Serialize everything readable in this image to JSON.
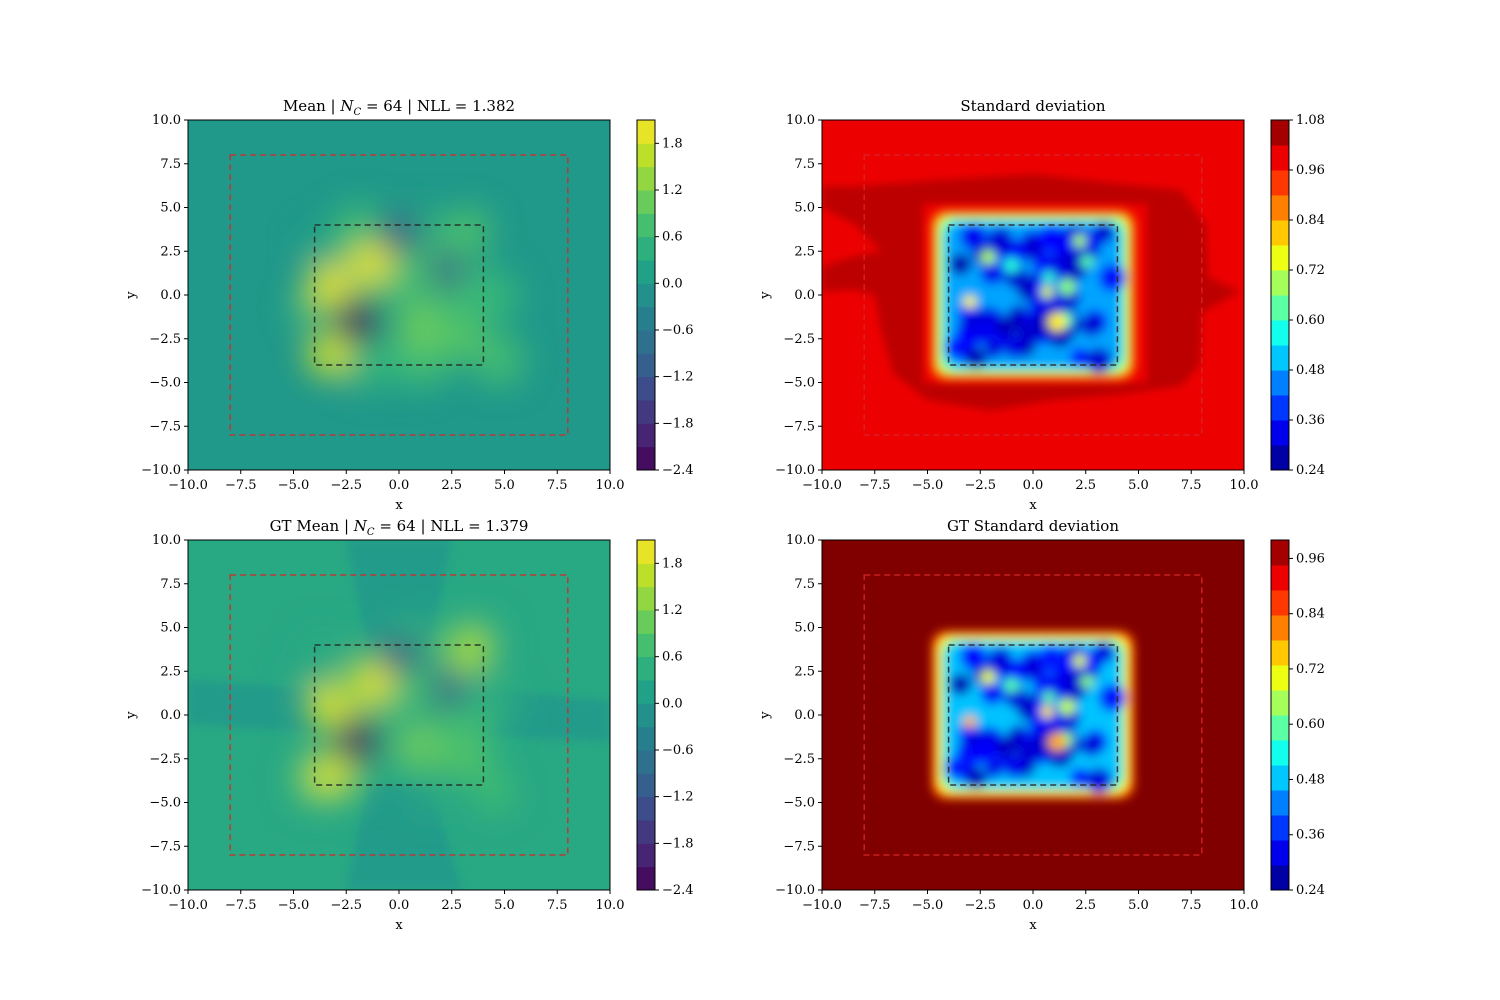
{
  "chart_data": [
    {
      "type": "heatmap",
      "title": "Mean | N_C = 64 | NLL = 1.382",
      "title_parts": {
        "prefix": "Mean | ",
        "symbol": "N",
        "subscript": "C",
        "suffix": " = 64 | NLL = 1.382"
      },
      "xlabel": "x",
      "ylabel": "y",
      "xlim": [
        -10,
        10
      ],
      "ylim": [
        -10,
        10
      ],
      "xticks": [
        "−10.0",
        "−7.5",
        "−5.0",
        "−2.5",
        "0.0",
        "2.5",
        "5.0",
        "7.5",
        "10.0"
      ],
      "yticks": [
        "−10.0",
        "−7.5",
        "−5.0",
        "−2.5",
        "0.0",
        "2.5",
        "5.0",
        "7.5",
        "10.0"
      ],
      "colormap": "viridis",
      "background_value": 0.0,
      "colorbar": {
        "min": -2.4,
        "max": 2.1,
        "ticks": [
          "−2.4",
          "−1.8",
          "−1.2",
          "−0.6",
          "0.0",
          "0.6",
          "1.2",
          "1.8"
        ]
      },
      "features": [
        {
          "x": 0.0,
          "y": 3.3,
          "value": -1.3
        },
        {
          "x": -1.3,
          "y": 1.8,
          "value": 1.9
        },
        {
          "x": -3.3,
          "y": 0.5,
          "value": 1.9
        },
        {
          "x": -2.0,
          "y": -1.5,
          "value": -2.3
        },
        {
          "x": -3.3,
          "y": -3.4,
          "value": 1.8
        },
        {
          "x": 2.0,
          "y": 1.3,
          "value": -1.4
        },
        {
          "x": 3.3,
          "y": 3.7,
          "value": 0.8
        },
        {
          "x": 0.8,
          "y": 1.5,
          "value": 0.7
        },
        {
          "x": 1.0,
          "y": -1.8,
          "value": 1.1
        },
        {
          "x": 3.0,
          "y": -2.3,
          "value": 0.9
        },
        {
          "x": 2.5,
          "y": -0.7,
          "value": 0.7
        }
      ],
      "region_boxes": [
        {
          "x": [
            -8,
            8
          ],
          "y": [
            -8,
            8
          ],
          "color": "#d62728"
        },
        {
          "x": [
            -4,
            4
          ],
          "y": [
            -4,
            4
          ],
          "color": "#222222"
        }
      ]
    },
    {
      "type": "heatmap",
      "title": "Standard deviation",
      "xlabel": "x",
      "ylabel": "y",
      "xlim": [
        -10,
        10
      ],
      "ylim": [
        -10,
        10
      ],
      "xticks": [
        "−10.0",
        "−7.5",
        "−5.0",
        "−2.5",
        "0.0",
        "2.5",
        "5.0",
        "7.5",
        "10.0"
      ],
      "yticks": [
        "−10.0",
        "−7.5",
        "−5.0",
        "−2.5",
        "0.0",
        "2.5",
        "5.0",
        "7.5",
        "10.0"
      ],
      "colormap": "jet",
      "background_value": 0.99,
      "ring_value": 1.03,
      "colorbar": {
        "min": 0.24,
        "max": 1.08,
        "ticks": [
          "0.24",
          "0.36",
          "0.48",
          "0.60",
          "0.72",
          "0.84",
          "0.96",
          "1.08"
        ]
      },
      "region_boxes": [
        {
          "x": [
            -8,
            8
          ],
          "y": [
            -8,
            8
          ],
          "color": "#d62728"
        },
        {
          "x": [
            -4,
            4
          ],
          "y": [
            -4,
            4
          ],
          "color": "#222222"
        }
      ]
    },
    {
      "type": "heatmap",
      "title": "GT Mean | N_C = 64 | NLL = 1.379",
      "title_parts": {
        "prefix": "GT Mean | ",
        "symbol": "N",
        "subscript": "C",
        "suffix": " = 64 | NLL = 1.379"
      },
      "xlabel": "x",
      "ylabel": "y",
      "xlim": [
        -10,
        10
      ],
      "ylim": [
        -10,
        10
      ],
      "xticks": [
        "−10.0",
        "−7.5",
        "−5.0",
        "−2.5",
        "0.0",
        "2.5",
        "5.0",
        "7.5",
        "10.0"
      ],
      "yticks": [
        "−10.0",
        "−7.5",
        "−5.0",
        "−2.5",
        "0.0",
        "2.5",
        "5.0",
        "7.5",
        "10.0"
      ],
      "colormap": "viridis",
      "background_value": 0.3,
      "colorbar": {
        "min": -2.4,
        "max": 2.1,
        "ticks": [
          "−2.4",
          "−1.8",
          "−1.2",
          "−0.6",
          "0.0",
          "0.6",
          "1.2",
          "1.8"
        ]
      },
      "features": [
        {
          "x": 0.0,
          "y": 3.3,
          "value": -1.3
        },
        {
          "x": -1.3,
          "y": 1.8,
          "value": 1.9
        },
        {
          "x": -3.3,
          "y": 0.5,
          "value": 1.9
        },
        {
          "x": -2.0,
          "y": -1.5,
          "value": -2.3
        },
        {
          "x": -3.3,
          "y": -3.4,
          "value": 1.8
        },
        {
          "x": 2.0,
          "y": 1.3,
          "value": -1.4
        },
        {
          "x": 3.3,
          "y": 3.7,
          "value": 1.5
        },
        {
          "x": 0.8,
          "y": 1.5,
          "value": 0.7
        },
        {
          "x": 1.0,
          "y": -1.8,
          "value": 1.1
        },
        {
          "x": 3.0,
          "y": -2.3,
          "value": 0.9
        },
        {
          "x": 2.5,
          "y": -0.7,
          "value": 0.7
        }
      ],
      "region_boxes": [
        {
          "x": [
            -8,
            8
          ],
          "y": [
            -8,
            8
          ],
          "color": "#d62728"
        },
        {
          "x": [
            -4,
            4
          ],
          "y": [
            -4,
            4
          ],
          "color": "#222222"
        }
      ]
    },
    {
      "type": "heatmap",
      "title": "GT Standard deviation",
      "xlabel": "x",
      "ylabel": "y",
      "xlim": [
        -10,
        10
      ],
      "ylim": [
        -10,
        10
      ],
      "xticks": [
        "−10.0",
        "−7.5",
        "−5.0",
        "−2.5",
        "0.0",
        "2.5",
        "5.0",
        "7.5",
        "10.0"
      ],
      "yticks": [
        "−10.0",
        "−7.5",
        "−5.0",
        "−2.5",
        "0.0",
        "2.5",
        "5.0",
        "7.5",
        "10.0"
      ],
      "colormap": "jet",
      "background_value": 1.0,
      "colorbar": {
        "min": 0.24,
        "max": 1.0,
        "ticks": [
          "0.24",
          "0.36",
          "0.48",
          "0.60",
          "0.72",
          "0.84",
          "0.96"
        ]
      },
      "region_boxes": [
        {
          "x": [
            -8,
            8
          ],
          "y": [
            -8,
            8
          ],
          "color": "#d62728"
        },
        {
          "x": [
            -4,
            4
          ],
          "y": [
            -4,
            4
          ],
          "color": "#222222"
        }
      ]
    }
  ]
}
